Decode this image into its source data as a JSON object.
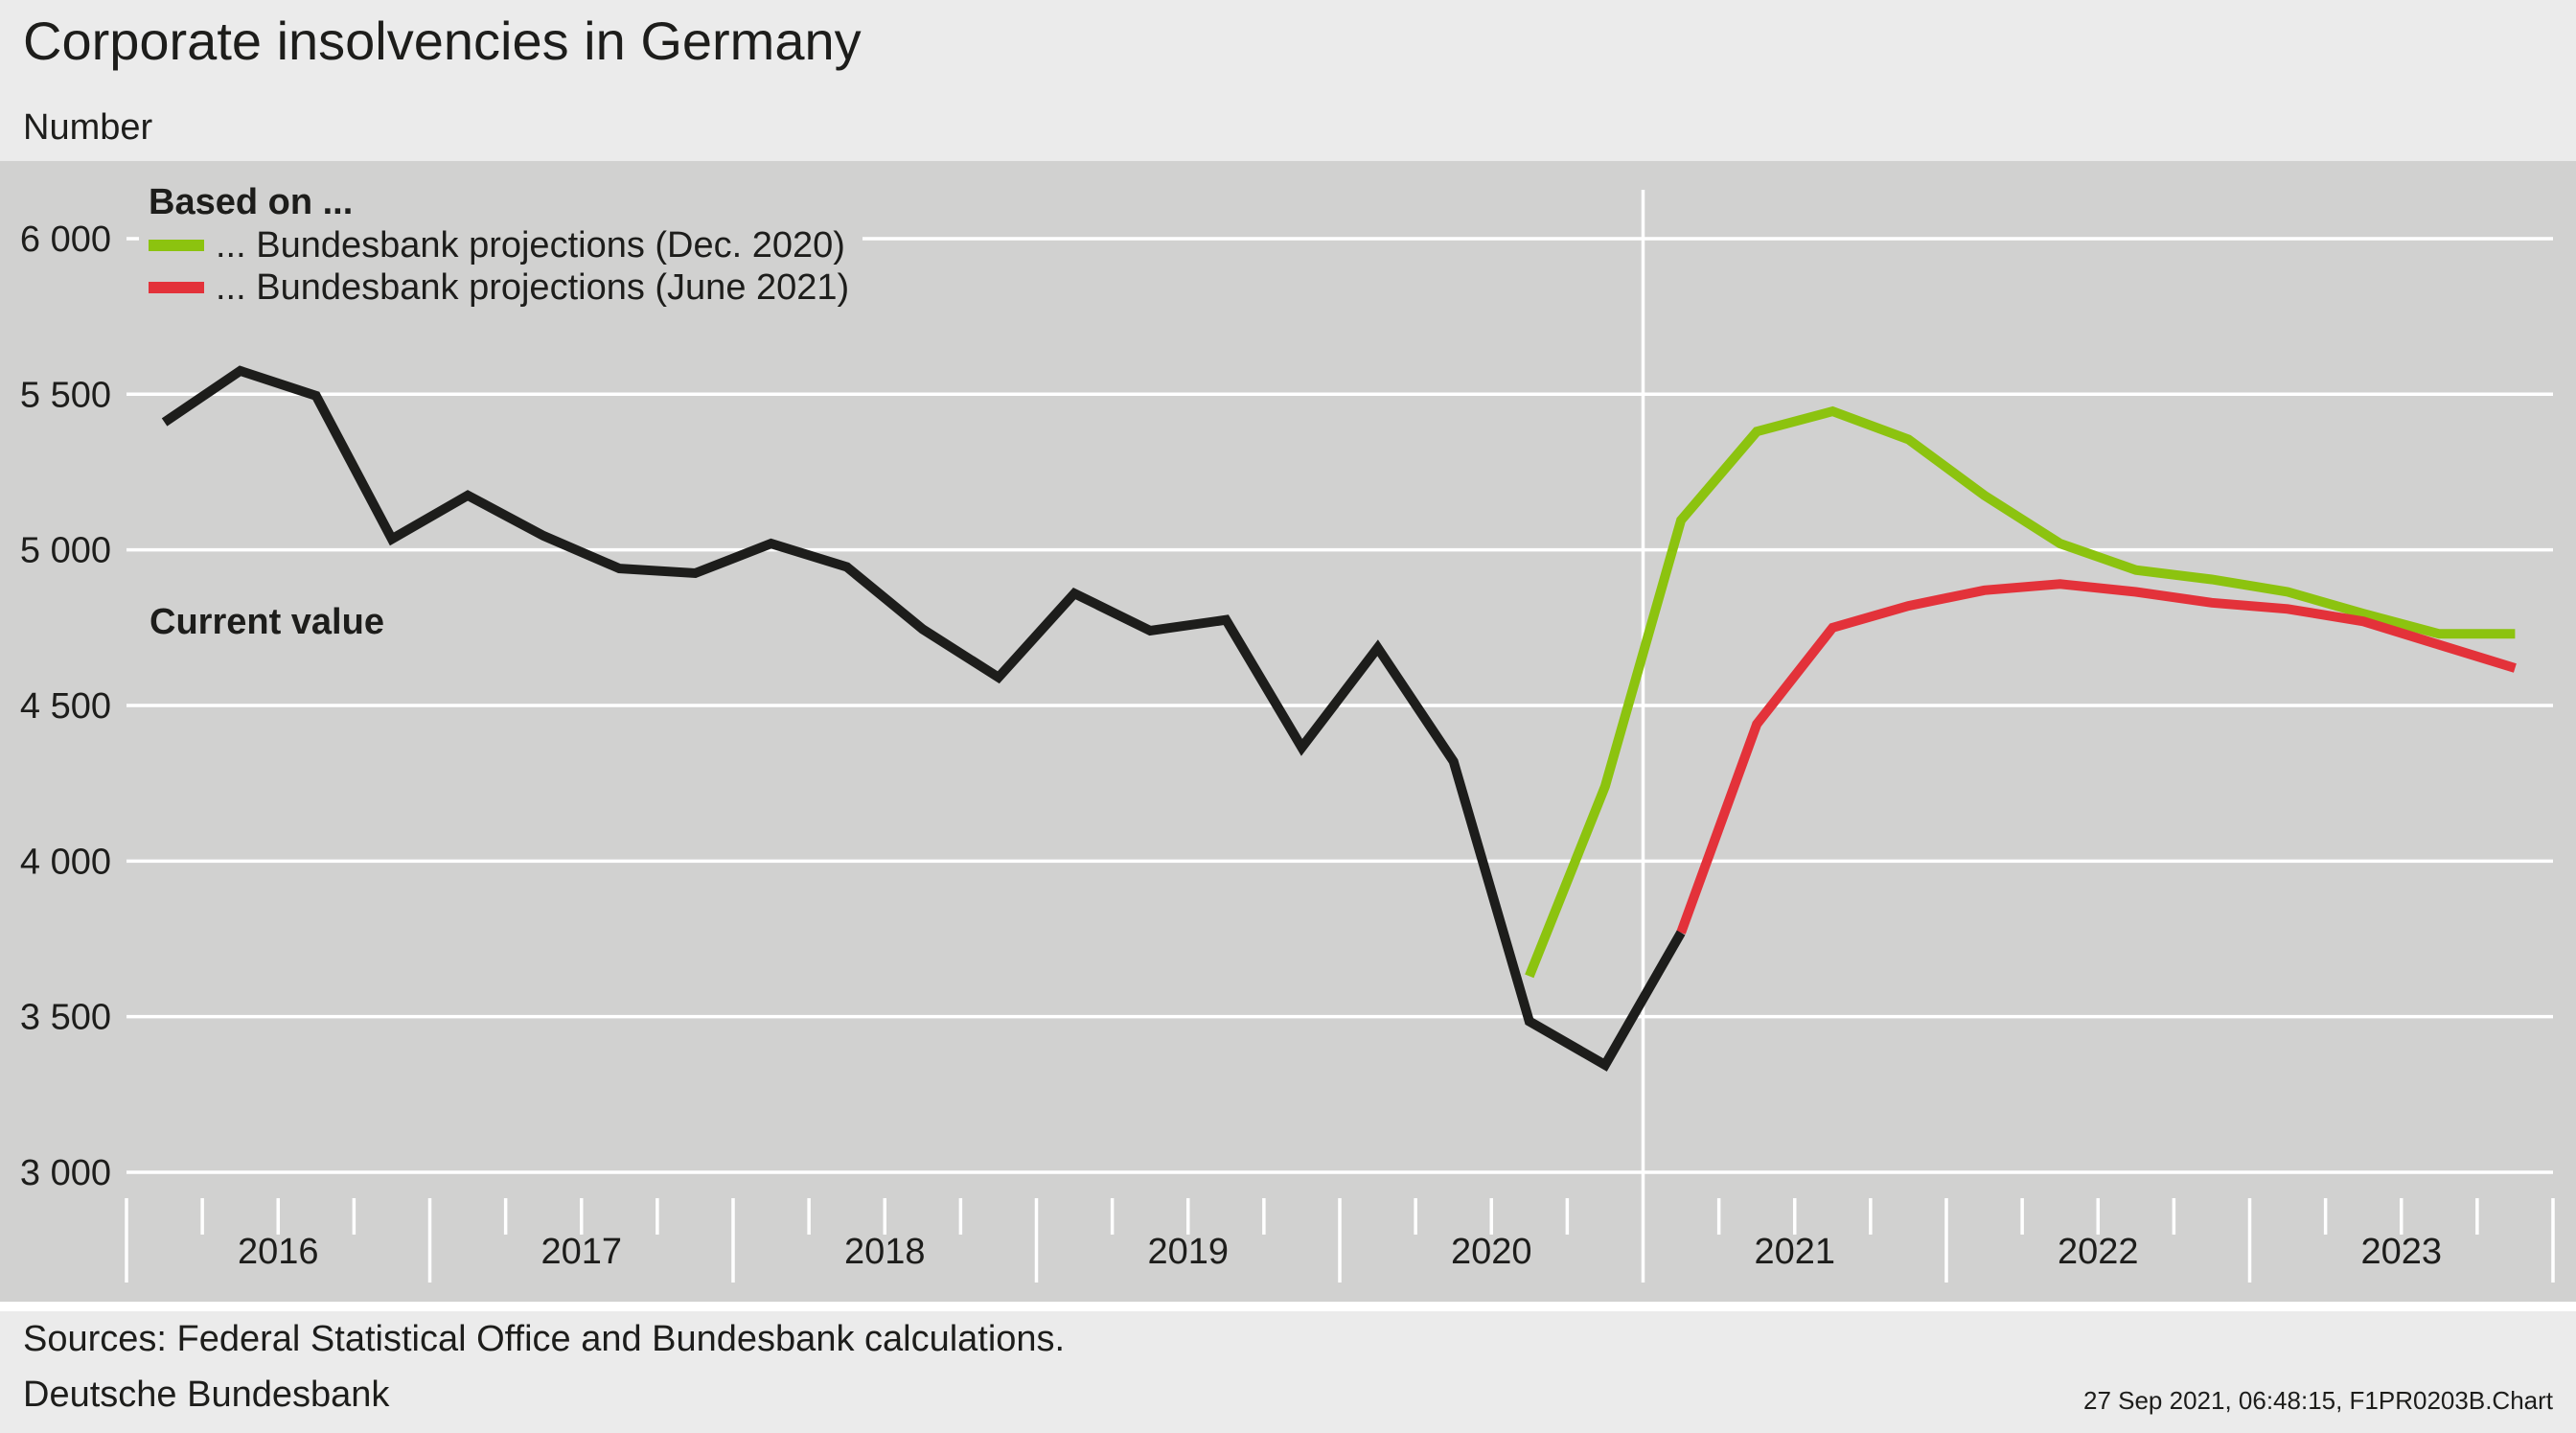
{
  "header": {
    "title": "Corporate insolvencies in Germany",
    "subtitle": "Number"
  },
  "footer": {
    "source": "Sources: Federal Statistical Office and Bundesbank calculations.",
    "publisher": "Deutsche Bundesbank",
    "stamp": "27 Sep 2021, 06:48:15, F1PR0203B.Chart"
  },
  "legend": {
    "heading": "Based on ...",
    "items": [
      {
        "label": "... Bundesbank projections (Dec. 2020)",
        "color": "#8cc30f"
      },
      {
        "label": "... Bundesbank projections (June 2021)",
        "color": "#e3323a"
      }
    ]
  },
  "annotations": {
    "current_value": "Current value"
  },
  "colors": {
    "plot_background": "#d1d1d0",
    "page_background": "#ebebeb",
    "gridline": "#ffffff",
    "current_value": "#1d1d1b",
    "dec2020": "#8cc30f",
    "june2021": "#e3323a"
  },
  "chart_data": {
    "type": "line",
    "title": "Corporate insolvencies in Germany",
    "subtitle": "Number",
    "ylim": [
      3000,
      6200
    ],
    "yticks": [
      3000,
      3500,
      4000,
      4500,
      5000,
      5500,
      6000
    ],
    "ytick_labels": [
      "3 000",
      "3 500",
      "4 000",
      "4 500",
      "5 000",
      "5 500",
      "6 000"
    ],
    "x_unit": "month",
    "x_start": "2016-01",
    "x_end": "2023-12",
    "year_labels": [
      "2016",
      "2017",
      "2018",
      "2019",
      "2020",
      "2021",
      "2022",
      "2023"
    ],
    "grid": true,
    "legend_position": "top-left",
    "vertical_marker": "2021-01",
    "series": [
      {
        "name": "Current value",
        "color": "#1d1d1b",
        "points": [
          [
            "2016-02",
            5410
          ],
          [
            "2016-05",
            5575
          ],
          [
            "2016-08",
            5495
          ],
          [
            "2016-11",
            5035
          ],
          [
            "2017-02",
            5175
          ],
          [
            "2017-05",
            5045
          ],
          [
            "2017-08",
            4940
          ],
          [
            "2017-11",
            4925
          ],
          [
            "2018-02",
            5020
          ],
          [
            "2018-05",
            4945
          ],
          [
            "2018-08",
            4745
          ],
          [
            "2018-11",
            4590
          ],
          [
            "2019-02",
            4860
          ],
          [
            "2019-05",
            4740
          ],
          [
            "2019-08",
            4775
          ],
          [
            "2019-11",
            4365
          ],
          [
            "2020-02",
            4685
          ],
          [
            "2020-05",
            4320
          ],
          [
            "2020-08",
            3485
          ],
          [
            "2020-11",
            3345
          ],
          [
            "2021-02",
            3770
          ]
        ]
      },
      {
        "name": "... Bundesbank projections (Dec. 2020)",
        "color": "#8cc30f",
        "points": [
          [
            "2020-08",
            3630
          ],
          [
            "2020-11",
            4240
          ],
          [
            "2021-02",
            5095
          ],
          [
            "2021-05",
            5380
          ],
          [
            "2021-08",
            5445
          ],
          [
            "2021-11",
            5355
          ],
          [
            "2022-02",
            5175
          ],
          [
            "2022-05",
            5020
          ],
          [
            "2022-08",
            4935
          ],
          [
            "2022-11",
            4905
          ],
          [
            "2023-02",
            4865
          ],
          [
            "2023-05",
            4795
          ],
          [
            "2023-08",
            4730
          ],
          [
            "2023-11",
            4730
          ]
        ]
      },
      {
        "name": "... Bundesbank projections (June 2021)",
        "color": "#e3323a",
        "points": [
          [
            "2021-02",
            3770
          ],
          [
            "2021-05",
            4440
          ],
          [
            "2021-08",
            4750
          ],
          [
            "2021-11",
            4820
          ],
          [
            "2022-02",
            4870
          ],
          [
            "2022-05",
            4890
          ],
          [
            "2022-08",
            4865
          ],
          [
            "2022-11",
            4830
          ],
          [
            "2023-02",
            4810
          ],
          [
            "2023-05",
            4770
          ],
          [
            "2023-08",
            4695
          ],
          [
            "2023-11",
            4620
          ]
        ]
      }
    ]
  }
}
